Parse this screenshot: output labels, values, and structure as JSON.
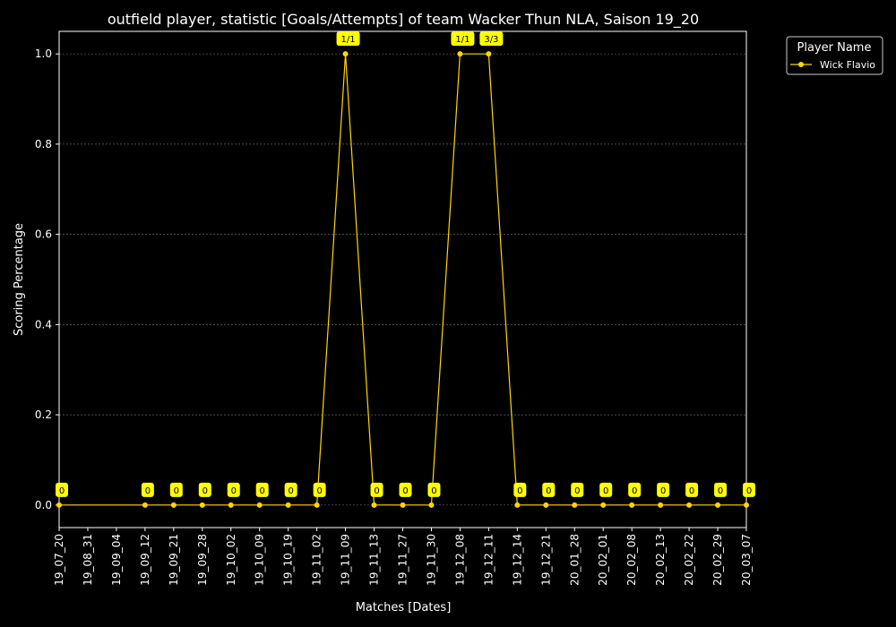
{
  "chart_data": {
    "type": "line",
    "title": "outfield player, statistic [Goals/Attempts] of team Wacker Thun NLA, Saison 19_20",
    "xlabel": "Matches [Dates]",
    "ylabel": "Scoring Percentage",
    "ylim": [
      -0.05,
      1.05
    ],
    "yticks": [
      "0.0",
      "0.2",
      "0.4",
      "0.6",
      "0.8",
      "1.0"
    ],
    "grid": true,
    "legend": {
      "title": "Player Name",
      "placement": "top-right-outside"
    },
    "colors": {
      "background": "#000000",
      "line": "#FFD700",
      "label_bg": "#FFFF00",
      "text": "#FFFFFF",
      "grid": "#666666"
    },
    "categories": [
      "19_07_20",
      "19_08_31",
      "19_09_04",
      "19_09_12",
      "19_09_21",
      "19_09_28",
      "19_10_02",
      "19_10_09",
      "19_10_19",
      "19_11_02",
      "19_11_09",
      "19_11_13",
      "19_11_27",
      "19_11_30",
      "19_12_08",
      "19_12_11",
      "19_12_14",
      "19_12_21",
      "20_01_28",
      "20_02_01",
      "20_02_08",
      "20_02_13",
      "20_02_22",
      "20_02_29",
      "20_03_07"
    ],
    "series": [
      {
        "name": "Wick Flavio",
        "values": [
          0,
          null,
          null,
          0,
          0,
          0,
          0,
          0,
          0,
          0,
          1.0,
          0,
          0,
          0,
          1.0,
          1.0,
          0,
          0,
          0,
          0,
          0,
          0,
          0,
          0,
          0
        ],
        "labels": [
          "0",
          null,
          null,
          "0",
          "0",
          "0",
          "0",
          "0",
          "0",
          "0",
          "1/1",
          "0",
          "0",
          "0",
          "1/1",
          "3/3",
          "0",
          "0",
          "0",
          "0",
          "0",
          "0",
          "0",
          "0",
          "0"
        ]
      }
    ]
  }
}
